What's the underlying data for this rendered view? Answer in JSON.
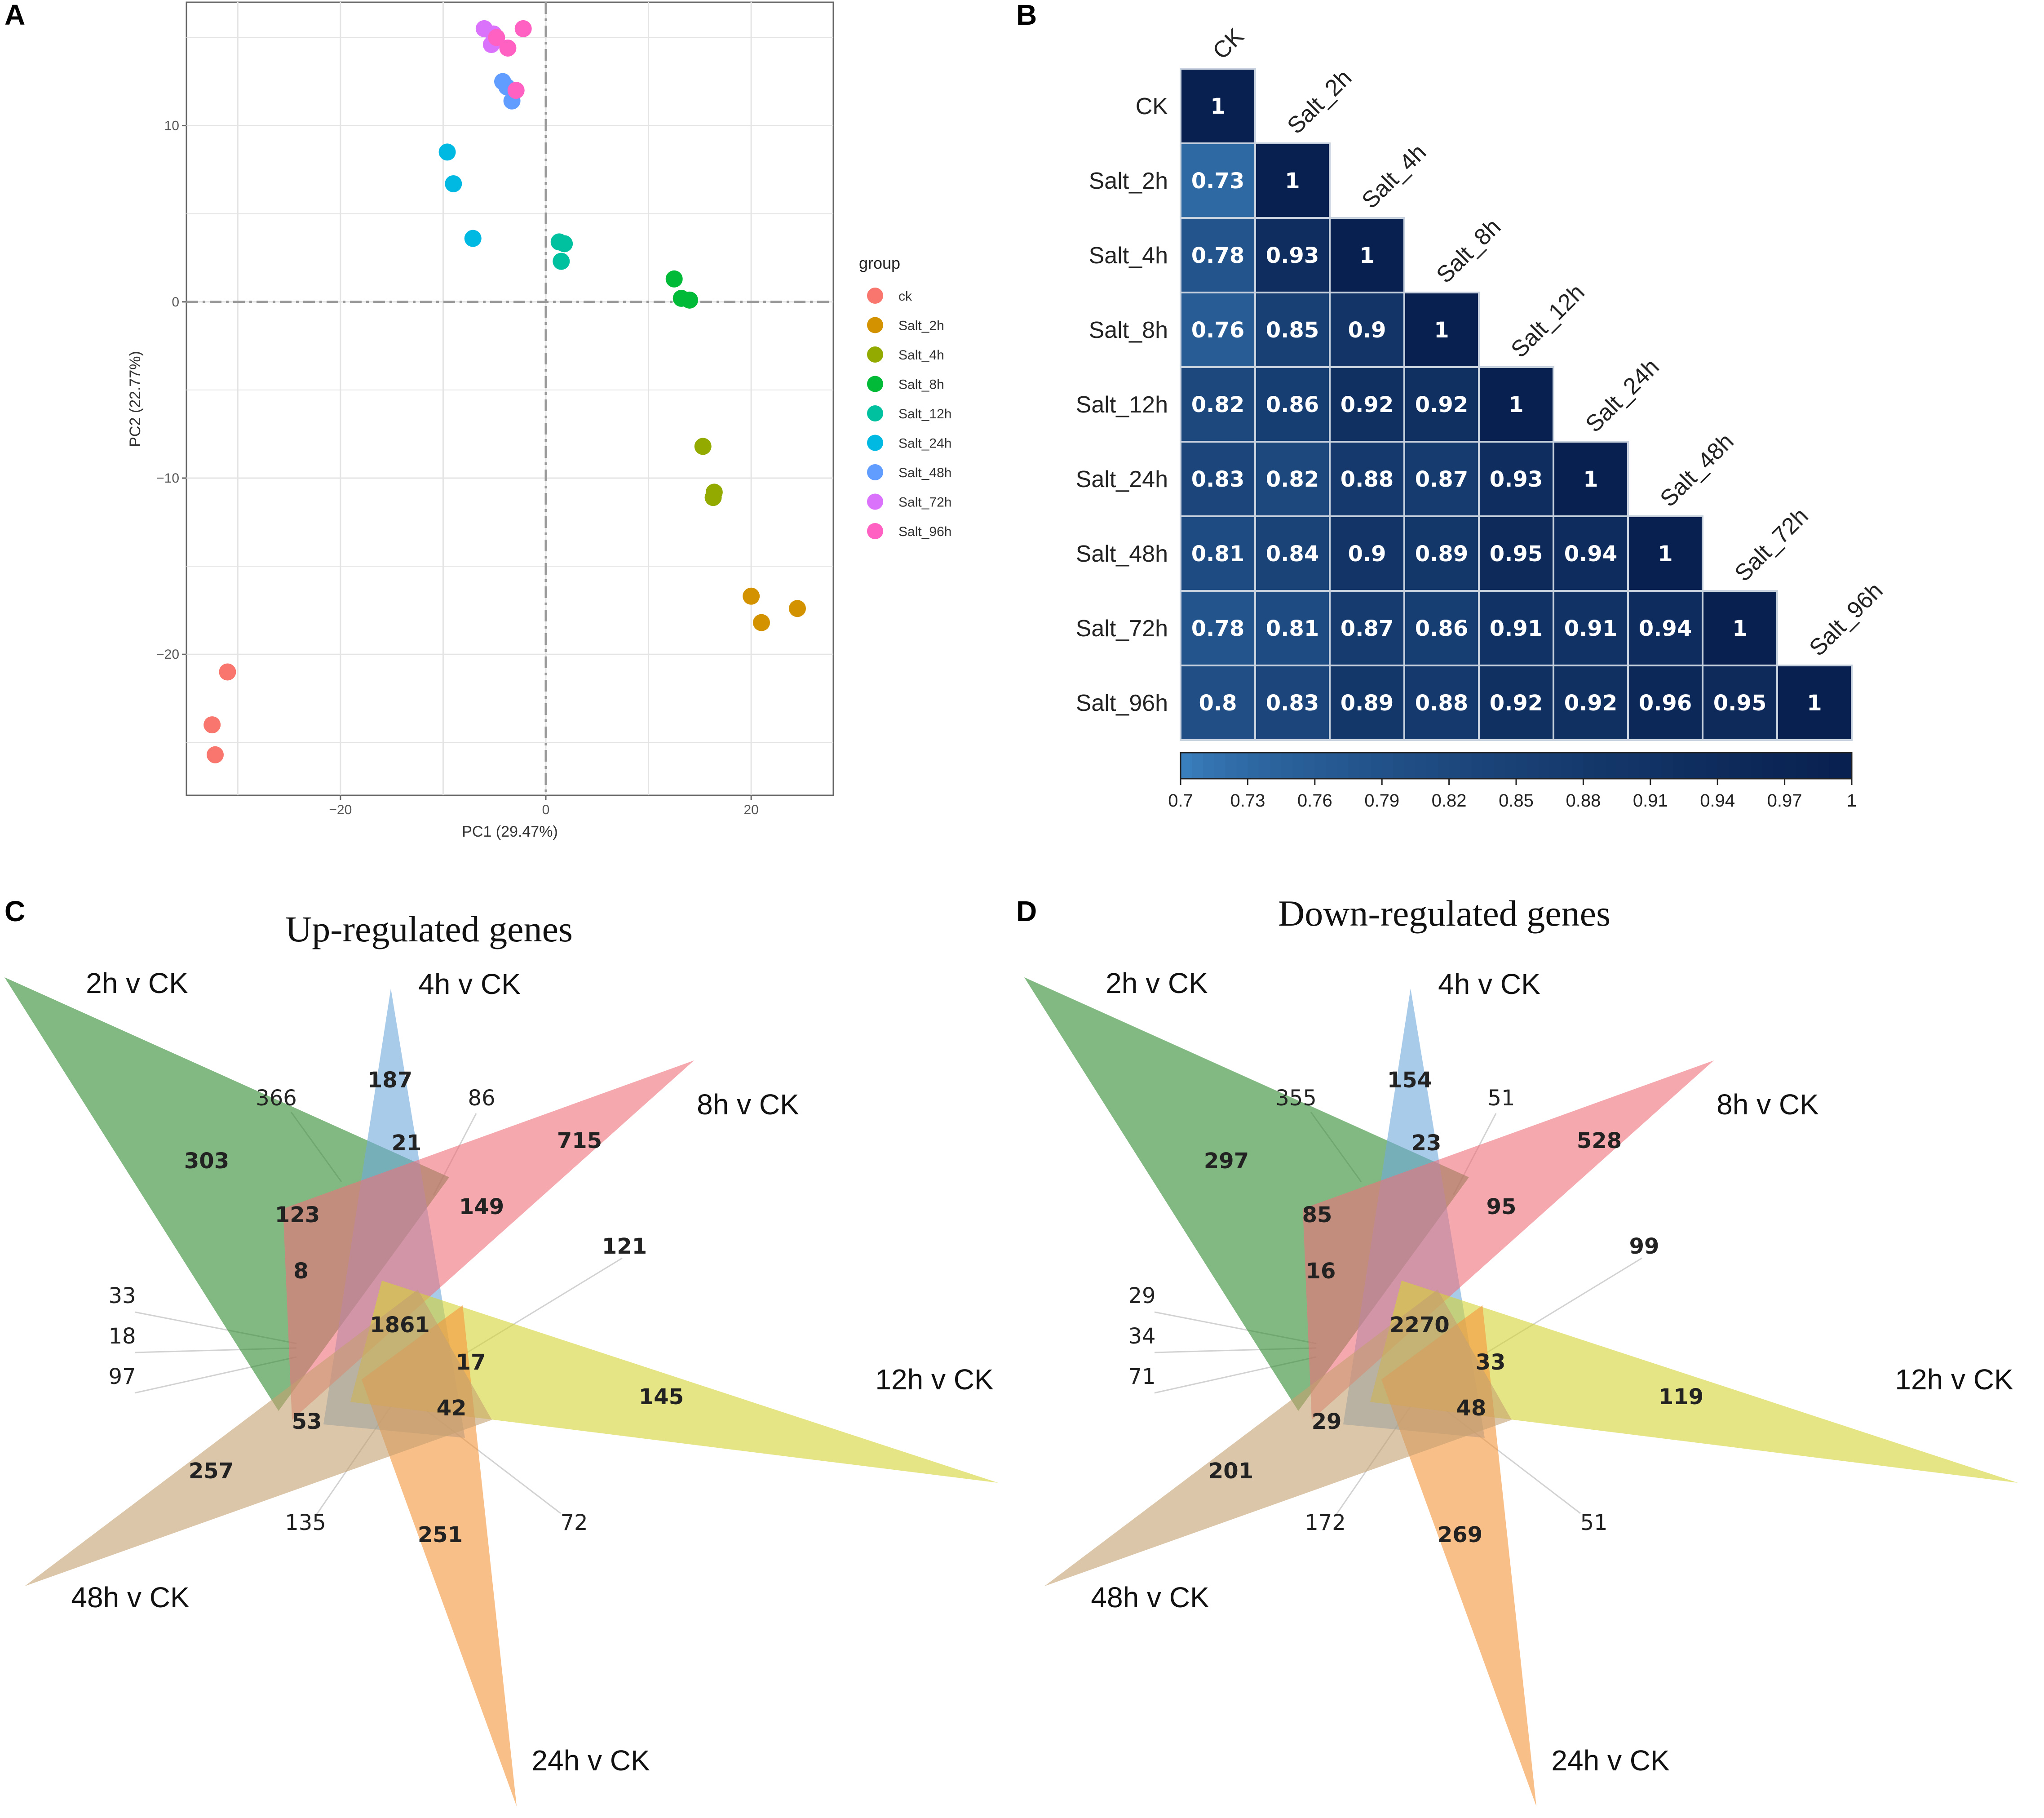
{
  "panels": {
    "a": "A",
    "b": "B",
    "c": "C",
    "d": "D"
  },
  "chart_data": [
    {
      "panel": "A",
      "type": "scatter",
      "xlabel": "PC1 (29.47%)",
      "ylabel": "PC2 (22.77%)",
      "xlim": [
        -35,
        28
      ],
      "ylim": [
        -28,
        17
      ],
      "xticks": [
        "-20",
        "0",
        "20"
      ],
      "yticks": [
        "10",
        "0",
        "-10",
        "-20"
      ],
      "legend_title": "group",
      "legend_position": "right",
      "series": [
        {
          "name": "ck",
          "color": "#F8766D",
          "points": [
            [
              -31,
              -21
            ],
            [
              -32.5,
              -24
            ],
            [
              -32.2,
              -25.7
            ]
          ]
        },
        {
          "name": "Salt_2h",
          "color": "#D39200",
          "points": [
            [
              20,
              -16.7
            ],
            [
              24.5,
              -17.4
            ],
            [
              21,
              -18.2
            ]
          ]
        },
        {
          "name": "Salt_4h",
          "color": "#93AA00",
          "points": [
            [
              15.3,
              -8.2
            ],
            [
              16.4,
              -10.8
            ],
            [
              16.3,
              -11.1
            ]
          ]
        },
        {
          "name": "Salt_8h",
          "color": "#00BA38",
          "points": [
            [
              12.5,
              1.3
            ],
            [
              13.2,
              0.2
            ],
            [
              14,
              0.1
            ]
          ]
        },
        {
          "name": "Salt_12h",
          "color": "#00C19F",
          "points": [
            [
              1.3,
              3.4
            ],
            [
              1.8,
              3.3
            ],
            [
              1.5,
              2.3
            ]
          ]
        },
        {
          "name": "Salt_24h",
          "color": "#00B9E3",
          "points": [
            [
              -9.6,
              8.5
            ],
            [
              -9,
              6.7
            ],
            [
              -7.1,
              3.6
            ]
          ]
        },
        {
          "name": "Salt_48h",
          "color": "#619CFF",
          "points": [
            [
              -4.2,
              12.5
            ],
            [
              -3.8,
              12.2
            ],
            [
              -3.3,
              11.4
            ]
          ]
        },
        {
          "name": "Salt_72h",
          "color": "#DB72FB",
          "points": [
            [
              -6,
              15.5
            ],
            [
              -5.1,
              15.2
            ],
            [
              -5.3,
              14.6
            ]
          ]
        },
        {
          "name": "Salt_96h",
          "color": "#FF61C3",
          "points": [
            [
              -4.8,
              15
            ],
            [
              -3.7,
              14.4
            ],
            [
              -2.9,
              12
            ],
            [
              -2.2,
              15.5
            ]
          ]
        }
      ]
    },
    {
      "panel": "B",
      "type": "heatmap",
      "labels": [
        "CK",
        "Salt_2h",
        "Salt_4h",
        "Salt_8h",
        "Salt_12h",
        "Salt_24h",
        "Salt_48h",
        "Salt_72h",
        "Salt_96h"
      ],
      "values": [
        [
          "1"
        ],
        [
          "0.73",
          "1"
        ],
        [
          "0.78",
          "0.93",
          "1"
        ],
        [
          "0.76",
          "0.85",
          "0.9",
          "1"
        ],
        [
          "0.82",
          "0.86",
          "0.92",
          "0.92",
          "1"
        ],
        [
          "0.83",
          "0.82",
          "0.88",
          "0.87",
          "0.93",
          "1"
        ],
        [
          "0.81",
          "0.84",
          "0.9",
          "0.89",
          "0.95",
          "0.94",
          "1"
        ],
        [
          "0.78",
          "0.81",
          "0.87",
          "0.86",
          "0.91",
          "0.91",
          "0.94",
          "1"
        ],
        [
          "0.8",
          "0.83",
          "0.89",
          "0.88",
          "0.92",
          "0.92",
          "0.96",
          "0.95",
          "1"
        ]
      ],
      "colorbar_range": [
        0.7,
        1
      ],
      "colorbar_ticks": [
        "0.7",
        "0.73",
        "0.76",
        "0.79",
        "0.82",
        "0.85",
        "0.88",
        "0.91",
        "0.94",
        "0.97",
        "1"
      ],
      "color_low": "#3D86C6",
      "color_high": "#08204F"
    },
    {
      "panel": "C",
      "type": "venn",
      "title": "Up-regulated genes",
      "sets": [
        {
          "name": "2h v CK",
          "color": "#2E8B2E"
        },
        {
          "name": "4h v CK",
          "color": "#6FA8DC"
        },
        {
          "name": "8h v CK",
          "color": "#EE6F7A"
        },
        {
          "name": "12h v CK",
          "color": "#D4D436"
        },
        {
          "name": "24h v CK",
          "color": "#F5943A"
        },
        {
          "name": "48h v CK",
          "color": "#C4A070"
        }
      ],
      "counts": [
        "303",
        "187",
        "715",
        "145",
        "251",
        "257",
        "366",
        "86",
        "21",
        "123",
        "149",
        "121",
        "8",
        "1861",
        "33",
        "18",
        "97",
        "17",
        "42",
        "53",
        "135",
        "72"
      ]
    },
    {
      "panel": "D",
      "type": "venn",
      "title": "Down-regulated genes",
      "sets": [
        {
          "name": "2h v CK",
          "color": "#2E8B2E"
        },
        {
          "name": "4h v CK",
          "color": "#6FA8DC"
        },
        {
          "name": "8h v CK",
          "color": "#EE6F7A"
        },
        {
          "name": "12h v CK",
          "color": "#D4D436"
        },
        {
          "name": "24h v CK",
          "color": "#F5943A"
        },
        {
          "name": "48h v CK",
          "color": "#C4A070"
        }
      ],
      "counts": [
        "297",
        "154",
        "528",
        "119",
        "269",
        "201",
        "355",
        "51",
        "23",
        "85",
        "95",
        "99",
        "16",
        "2270",
        "29",
        "34",
        "71",
        "33",
        "48",
        "29",
        "172",
        "51"
      ]
    }
  ]
}
